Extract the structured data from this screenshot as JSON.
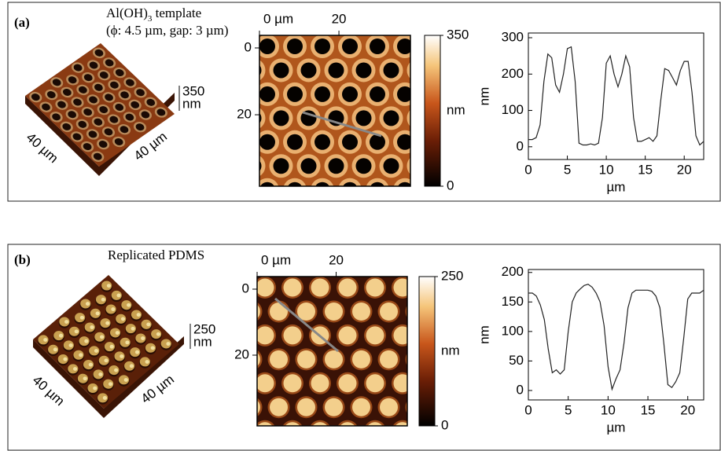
{
  "panels": [
    {
      "label": "(a)",
      "caption": [
        {
          "text": "Al(OH)"
        },
        {
          "text": "3",
          "sub": true
        },
        {
          "text": " template"
        }
      ],
      "caption2": "(ϕ: 4.5 µm, gap: 3 µm)",
      "afm_3d": {
        "z_max": "350",
        "z_unit": "nm",
        "x_label": "40 µm",
        "y_label": "40 µm"
      },
      "afm_2d": {
        "xlim": [
          0,
          38
        ],
        "ylim": [
          0,
          38
        ],
        "xticks": [
          {
            "value": 0,
            "label": "0 µm"
          },
          20
        ],
        "yticks": [
          0,
          20
        ],
        "style": "holes"
      },
      "colorbar": {
        "lim": [
          0,
          350
        ],
        "ticks": [
          0,
          350
        ],
        "label": "nm"
      }
    },
    {
      "label": "(b)",
      "caption": [
        {
          "text": "Replicated PDMS"
        }
      ],
      "afm_3d": {
        "z_max": "250",
        "z_unit": "nm",
        "x_label": "40 µm",
        "y_label": "40 µm"
      },
      "afm_2d": {
        "xlim": [
          0,
          38
        ],
        "ylim": [
          0,
          38
        ],
        "xticks": [
          {
            "value": 0,
            "label": "0 µm"
          },
          20
        ],
        "yticks": [
          0,
          20
        ],
        "style": "pillars"
      },
      "colorbar": {
        "lim": [
          0,
          250
        ],
        "ticks": [
          0,
          250
        ],
        "label": "nm"
      }
    }
  ],
  "chart_data": [
    {
      "type": "line",
      "xlabel": "µm",
      "ylabel": "nm",
      "color": "#222",
      "x": [
        0,
        0.5,
        1,
        1.5,
        2,
        2.5,
        3,
        3.5,
        4,
        4.5,
        5,
        5.5,
        6,
        6.5,
        7,
        7.5,
        8,
        8.5,
        9,
        9.5,
        10,
        10.5,
        11,
        11.5,
        12,
        12.5,
        13,
        13.5,
        14,
        14.5,
        15,
        15.5,
        16,
        16.5,
        17,
        17.5,
        18,
        18.5,
        19,
        19.5,
        20,
        20.5,
        21,
        21.5,
        22,
        22.5
      ],
      "values": [
        20,
        20,
        25,
        60,
        180,
        255,
        245,
        170,
        150,
        200,
        270,
        275,
        180,
        10,
        5,
        5,
        8,
        5,
        10,
        80,
        230,
        250,
        200,
        165,
        200,
        250,
        220,
        80,
        15,
        15,
        20,
        25,
        15,
        30,
        130,
        215,
        210,
        190,
        170,
        210,
        235,
        235,
        150,
        30,
        5,
        15
      ],
      "xlim": [
        0,
        22.5
      ],
      "xticks": [
        0,
        5,
        10,
        15,
        20
      ],
      "ylim": [
        -35,
        313
      ],
      "yticks": [
        0,
        100,
        200,
        300
      ]
    },
    {
      "type": "line",
      "xlabel": "µm",
      "ylabel": "nm",
      "color": "#222",
      "x": [
        0,
        0.5,
        1,
        1.5,
        2,
        2.5,
        3,
        3.5,
        4,
        4.5,
        5,
        5.5,
        6,
        6.5,
        7,
        7.5,
        8,
        8.5,
        9,
        9.5,
        10,
        10.5,
        11,
        11.5,
        12,
        12.5,
        13,
        13.5,
        14,
        14.5,
        15,
        15.5,
        16,
        16.5,
        17,
        17.5,
        18,
        18.5,
        19,
        19.5,
        20,
        20.5,
        21,
        21.5,
        22
      ],
      "values": [
        165,
        165,
        160,
        145,
        120,
        70,
        30,
        35,
        28,
        35,
        100,
        150,
        165,
        172,
        178,
        180,
        175,
        165,
        150,
        110,
        40,
        2,
        20,
        35,
        80,
        140,
        165,
        170,
        170,
        170,
        170,
        168,
        160,
        140,
        80,
        10,
        5,
        15,
        30,
        90,
        155,
        165,
        165,
        165,
        170
      ],
      "xlim": [
        0,
        22
      ],
      "xticks": [
        0,
        5,
        10,
        15,
        20
      ],
      "ylim": [
        -16,
        205
      ],
      "yticks": [
        0,
        50,
        100,
        150,
        200
      ]
    }
  ]
}
